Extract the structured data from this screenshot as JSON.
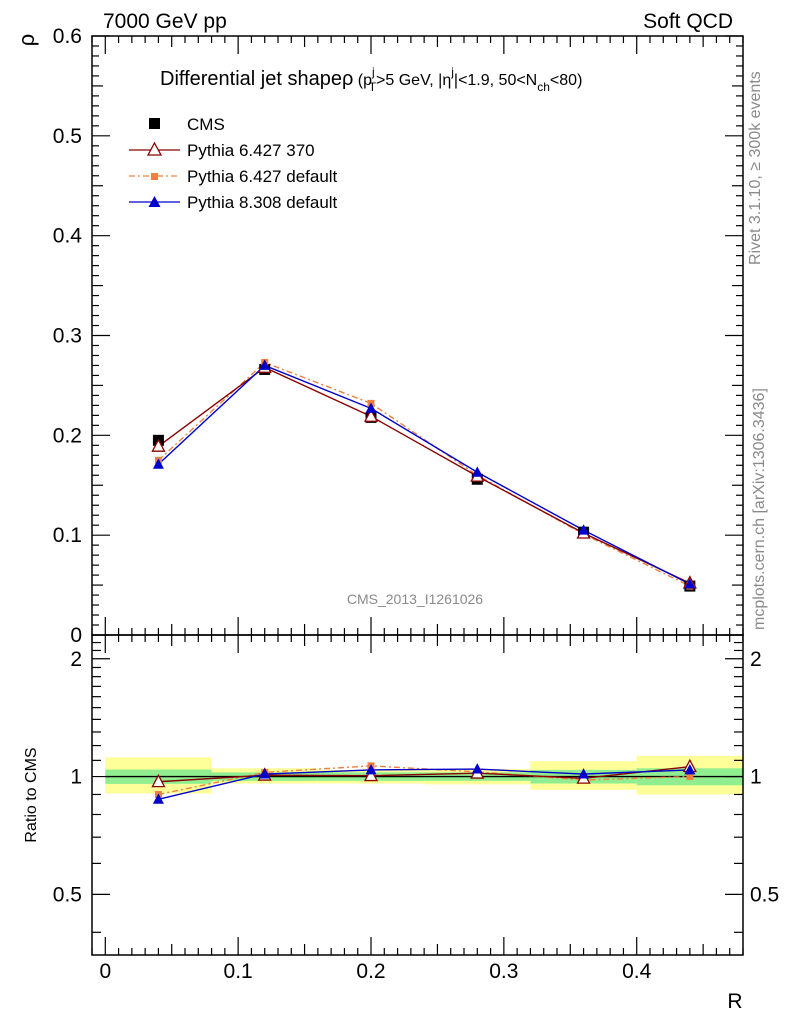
{
  "header": {
    "left": "7000 GeV pp",
    "right": "Soft QCD"
  },
  "side_labels": {
    "rivet": "Rivet 3.1.10, ≥ 300k events",
    "mcplots": "mcplots.cern.ch [arXiv:1306.3436]"
  },
  "watermark": "CMS_2013_I1261026",
  "colors": {
    "cms": "#000000",
    "py6_370": "#8b0000",
    "py6_default": "#f08040",
    "py8": "#0000cc",
    "band_inner": "#90ee90",
    "band_outer": "#ffff99"
  },
  "chart_data": [
    {
      "type": "scatter",
      "title": "Differential jet shape ρ (p_T^j>5 GeV, |η^j|<1.9, 50<N_ch<80)",
      "title_parts": {
        "main": "Differential jet shape",
        "rho": "ρ",
        "open": " (p",
        "sub_T": "T",
        "sup_j1": "j",
        "gev": ">5 GeV, |η",
        "sup_j2": "j",
        "mid": "|<1.9, 50<N",
        "sub_ch": "ch",
        "close": "<80)"
      },
      "ylabel": "ρ",
      "xlim": [
        -0.01,
        0.48
      ],
      "ylim": [
        0,
        0.6
      ],
      "yticks": [
        "0",
        "0.1",
        "0.2",
        "0.3",
        "0.4",
        "0.5",
        "0.6"
      ],
      "legend_position": "top-left",
      "x": [
        0.04,
        0.12,
        0.2,
        0.28,
        0.36,
        0.44
      ],
      "series": [
        {
          "name": "CMS",
          "marker": "square",
          "values": [
            0.195,
            0.266,
            0.218,
            0.156,
            0.103,
            0.049
          ]
        },
        {
          "name": "Pythia 6.427 370",
          "marker": "open-triangle",
          "values": [
            0.189,
            0.268,
            0.219,
            0.159,
            0.102,
            0.052
          ]
        },
        {
          "name": "Pythia 6.427 default",
          "marker": "small-square",
          "values": [
            0.175,
            0.273,
            0.232,
            0.16,
            0.101,
            0.049
          ]
        },
        {
          "name": "Pythia 8.308 default",
          "marker": "triangle",
          "values": [
            0.171,
            0.27,
            0.227,
            0.163,
            0.105,
            0.051
          ]
        }
      ]
    },
    {
      "type": "scatter",
      "ylabel": "Ratio to CMS",
      "xlabel": "R",
      "xlim": [
        -0.01,
        0.48
      ],
      "ylim": [
        0.35,
        2.3
      ],
      "yticks": [
        "0.5",
        "1",
        "2"
      ],
      "xticks": [
        "0",
        "0.1",
        "0.2",
        "0.3",
        "0.4"
      ],
      "bins": [
        {
          "xlo": 0.0,
          "xhi": 0.08,
          "inner": [
            0.958,
            1.042
          ],
          "outer": [
            0.905,
            1.12
          ]
        },
        {
          "xlo": 0.08,
          "xhi": 0.16,
          "inner": [
            0.975,
            1.025
          ],
          "outer": [
            0.96,
            1.05
          ]
        },
        {
          "xlo": 0.16,
          "xhi": 0.24,
          "inner": [
            0.975,
            1.025
          ],
          "outer": [
            0.96,
            1.04
          ]
        },
        {
          "xlo": 0.24,
          "xhi": 0.32,
          "inner": [
            0.975,
            1.025
          ],
          "outer": [
            0.955,
            1.045
          ]
        },
        {
          "xlo": 0.32,
          "xhi": 0.4,
          "inner": [
            0.96,
            1.04
          ],
          "outer": [
            0.925,
            1.095
          ]
        },
        {
          "xlo": 0.4,
          "xhi": 0.48,
          "inner": [
            0.95,
            1.05
          ],
          "outer": [
            0.9,
            1.13
          ]
        }
      ],
      "x": [
        0.04,
        0.12,
        0.2,
        0.28,
        0.36,
        0.44
      ],
      "series": [
        {
          "name": "Pythia 6.427 370",
          "values": [
            0.97,
            1.008,
            1.005,
            1.02,
            0.99,
            1.06
          ]
        },
        {
          "name": "Pythia 6.427 default",
          "values": [
            0.9,
            1.025,
            1.065,
            1.028,
            0.98,
            1.0
          ]
        },
        {
          "name": "Pythia 8.308 default",
          "values": [
            0.875,
            1.015,
            1.04,
            1.045,
            1.015,
            1.04
          ]
        }
      ]
    }
  ]
}
